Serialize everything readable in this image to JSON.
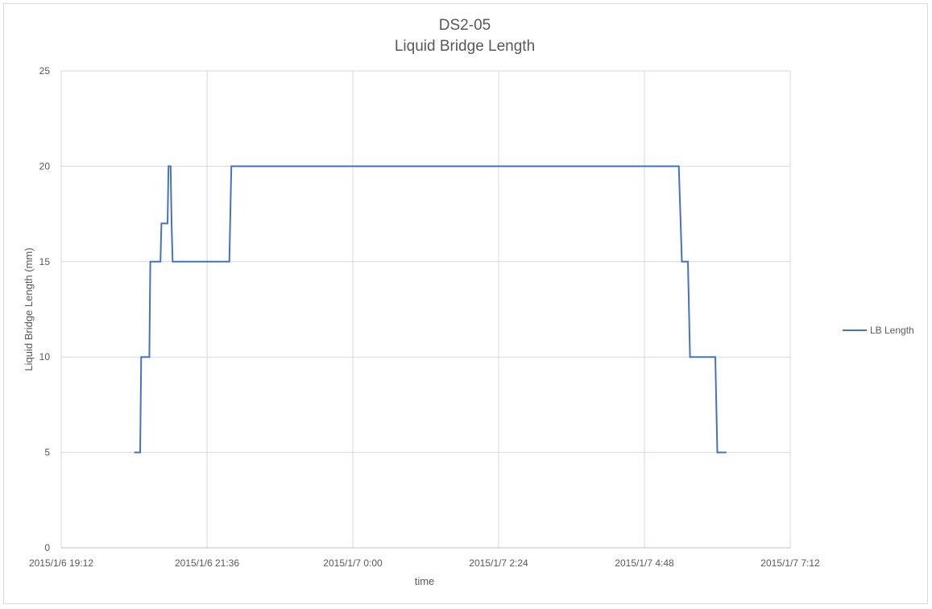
{
  "chart_data": {
    "type": "line",
    "title": "DS2-05",
    "subtitle": "Liquid Bridge Length",
    "xlabel": "time",
    "ylabel": "Liquid Bridge Length (mm)",
    "x_type": "datetime",
    "xlim": [
      "2015-01-06 19:12",
      "2015-01-07 07:12"
    ],
    "ylim": [
      0,
      25
    ],
    "x_ticks": [
      "2015/1/6 19:12",
      "2015/1/6 21:36",
      "2015/1/7 0:00",
      "2015/1/7 2:24",
      "2015/1/7 4:48",
      "2015/1/7 7:12"
    ],
    "x_tick_values": [
      "2015-01-06 19:12",
      "2015-01-06 21:36",
      "2015-01-07 00:00",
      "2015-01-07 02:24",
      "2015-01-07 04:48",
      "2015-01-07 07:12"
    ],
    "y_ticks": [
      0,
      5,
      10,
      15,
      20,
      25
    ],
    "grid": true,
    "legend_position": "right",
    "series": [
      {
        "name": "LB Length",
        "color": "#4472c4",
        "points": [
          {
            "x": "2015-01-06 20:24",
            "y": 5
          },
          {
            "x": "2015-01-06 20:30",
            "y": 5
          },
          {
            "x": "2015-01-06 20:31",
            "y": 10
          },
          {
            "x": "2015-01-06 20:39",
            "y": 10
          },
          {
            "x": "2015-01-06 20:40",
            "y": 15
          },
          {
            "x": "2015-01-06 20:50",
            "y": 15
          },
          {
            "x": "2015-01-06 20:51",
            "y": 17
          },
          {
            "x": "2015-01-06 20:57",
            "y": 17
          },
          {
            "x": "2015-01-06 20:58",
            "y": 20
          },
          {
            "x": "2015-01-06 21:00",
            "y": 20
          },
          {
            "x": "2015-01-06 21:01",
            "y": 17
          },
          {
            "x": "2015-01-06 21:02",
            "y": 15
          },
          {
            "x": "2015-01-06 21:58",
            "y": 15
          },
          {
            "x": "2015-01-06 22:00",
            "y": 20
          },
          {
            "x": "2015-01-07 05:22",
            "y": 20
          },
          {
            "x": "2015-01-07 05:25",
            "y": 15
          },
          {
            "x": "2015-01-07 05:31",
            "y": 15
          },
          {
            "x": "2015-01-07 05:33",
            "y": 10
          },
          {
            "x": "2015-01-07 05:58",
            "y": 10
          },
          {
            "x": "2015-01-07 06:00",
            "y": 5
          },
          {
            "x": "2015-01-07 06:09",
            "y": 5
          }
        ]
      }
    ]
  }
}
